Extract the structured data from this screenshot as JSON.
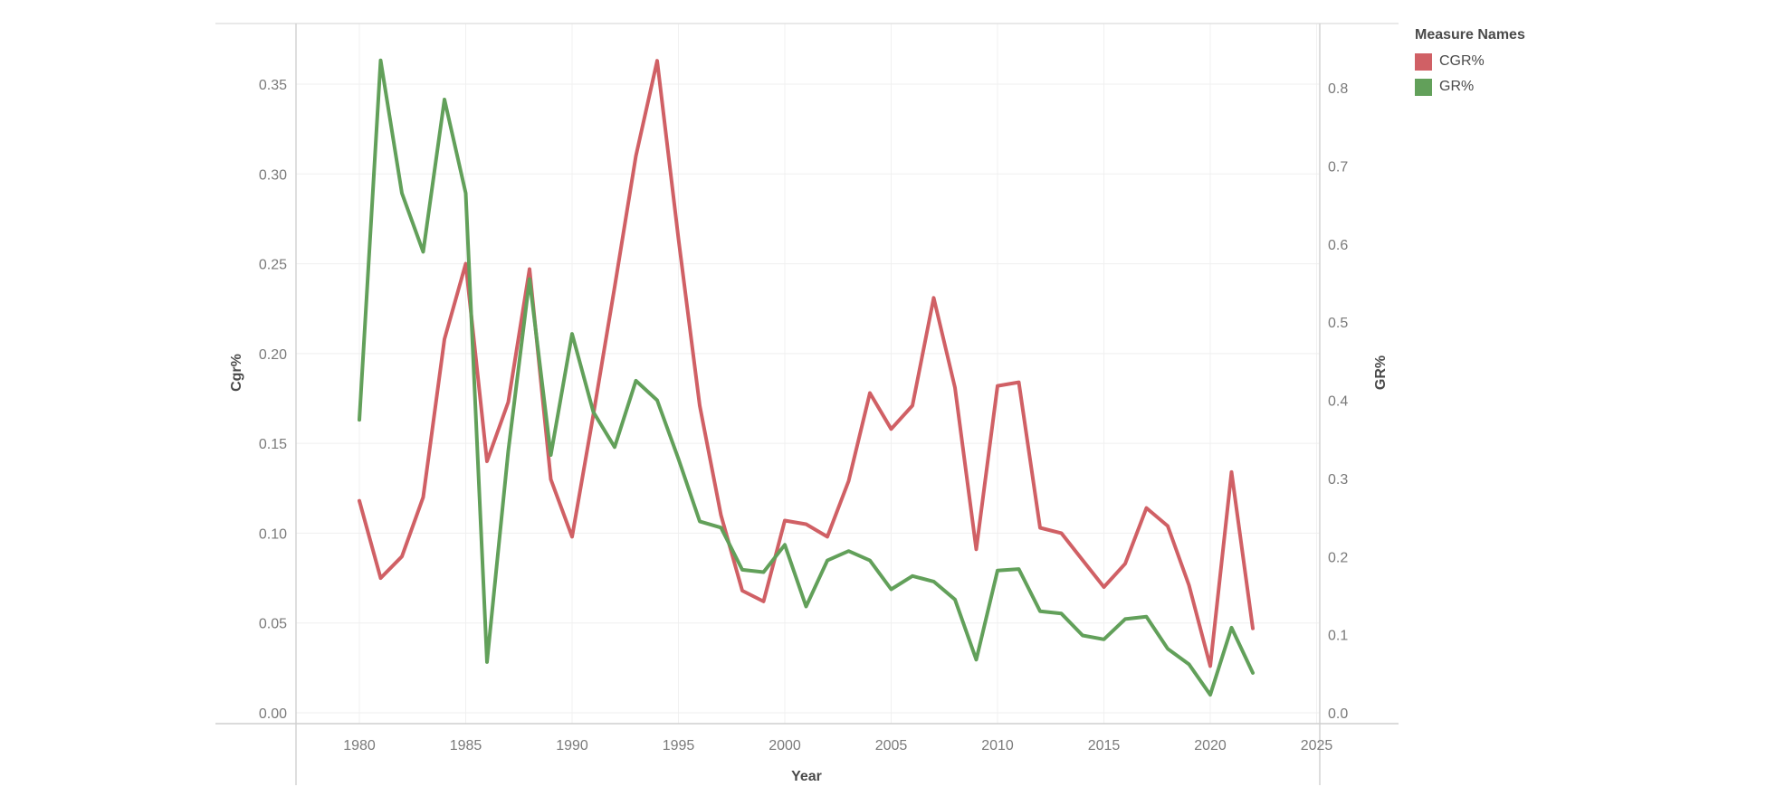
{
  "chart_data": {
    "type": "line",
    "xlabel": "Year",
    "ylabel_left": "Cgr%",
    "ylabel_right": "GR%",
    "xlim": [
      1977,
      2026
    ],
    "xticks": [
      1980,
      1985,
      1990,
      1995,
      2000,
      2005,
      2010,
      2015,
      2020,
      2025
    ],
    "ylim_left": [
      0,
      0.385
    ],
    "yticks_left": [
      "0.00",
      "0.05",
      "0.10",
      "0.15",
      "0.20",
      "0.25",
      "0.30",
      "0.35"
    ],
    "ylim_right": [
      0,
      0.87
    ],
    "yticks_right": [
      "0.0",
      "0.1",
      "0.2",
      "0.3",
      "0.4",
      "0.5",
      "0.6",
      "0.7",
      "0.8"
    ],
    "grid": true,
    "legend_position": "top-right",
    "legend_title": "Measure Names",
    "x": [
      1980,
      1981,
      1982,
      1983,
      1984,
      1985,
      1986,
      1987,
      1988,
      1989,
      1990,
      1991,
      1992,
      1993,
      1994,
      1995,
      1996,
      1997,
      1998,
      1999,
      2000,
      2001,
      2002,
      2003,
      2004,
      2005,
      2006,
      2007,
      2008,
      2009,
      2010,
      2011,
      2012,
      2013,
      2014,
      2015,
      2016,
      2017,
      2018,
      2019,
      2020,
      2021,
      2022
    ],
    "series": [
      {
        "name": "CGR%",
        "axis": "left",
        "color": "#d06065",
        "values": [
          0.118,
          0.075,
          0.087,
          0.12,
          0.208,
          0.25,
          0.14,
          0.173,
          0.247,
          0.13,
          0.098,
          0.166,
          0.237,
          0.31,
          0.363,
          0.264,
          0.171,
          0.11,
          0.068,
          0.062,
          0.107,
          0.105,
          0.098,
          0.129,
          0.178,
          0.158,
          0.171,
          0.231,
          0.181,
          0.091,
          0.182,
          0.184,
          0.103,
          0.1,
          0.085,
          0.07,
          0.083,
          0.114,
          0.104,
          0.071,
          0.026,
          0.134,
          0.047
        ]
      },
      {
        "name": "GR%",
        "axis": "right",
        "color": "#62a05a",
        "values": [
          0.375,
          0.835,
          0.665,
          0.59,
          0.785,
          0.665,
          0.065,
          0.335,
          0.555,
          0.33,
          0.485,
          0.385,
          0.34,
          0.425,
          0.4,
          0.325,
          0.245,
          0.237,
          0.183,
          0.18,
          0.215,
          0.136,
          0.195,
          0.207,
          0.195,
          0.158,
          0.175,
          0.168,
          0.145,
          0.068,
          0.182,
          0.184,
          0.13,
          0.127,
          0.099,
          0.094,
          0.12,
          0.123,
          0.082,
          0.062,
          0.023,
          0.109,
          0.051
        ]
      }
    ]
  }
}
